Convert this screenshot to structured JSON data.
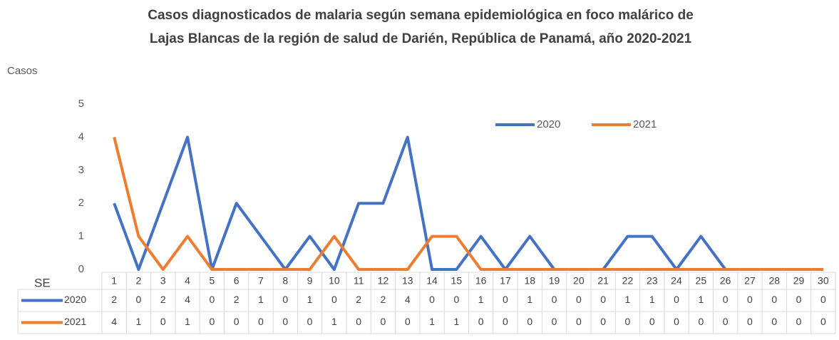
{
  "chart_data": {
    "type": "line",
    "title": [
      "Casos diagnosticados de malaria según semana epidemiológica en foco malárico de",
      "Lajas Blancas de la región de salud de Darién, República de Panamá,  año 2020-2021"
    ],
    "y_label": "Casos",
    "x_label": "SE",
    "categories": [
      1,
      2,
      3,
      4,
      5,
      6,
      7,
      8,
      9,
      10,
      11,
      12,
      13,
      14,
      15,
      16,
      17,
      18,
      19,
      20,
      21,
      22,
      23,
      24,
      25,
      26,
      27,
      28,
      29,
      30
    ],
    "series": [
      {
        "name": "2020",
        "color": "#4472c4",
        "values": [
          2,
          0,
          2,
          4,
          0,
          2,
          1,
          0,
          1,
          0,
          2,
          2,
          4,
          0,
          0,
          1,
          0,
          1,
          0,
          0,
          0,
          1,
          1,
          0,
          1,
          0,
          0,
          0,
          0,
          0
        ]
      },
      {
        "name": "2021",
        "color": "#ed7d31",
        "values": [
          4,
          1,
          0,
          1,
          0,
          0,
          0,
          0,
          0,
          1,
          0,
          0,
          0,
          1,
          1,
          0,
          0,
          0,
          0,
          0,
          0,
          0,
          0,
          0,
          0,
          0,
          0,
          0,
          0,
          0
        ]
      }
    ],
    "ylim": [
      0,
      5
    ],
    "yticks": [
      0,
      1,
      2,
      3,
      4,
      5
    ],
    "grid": false,
    "legend": "top-right"
  }
}
